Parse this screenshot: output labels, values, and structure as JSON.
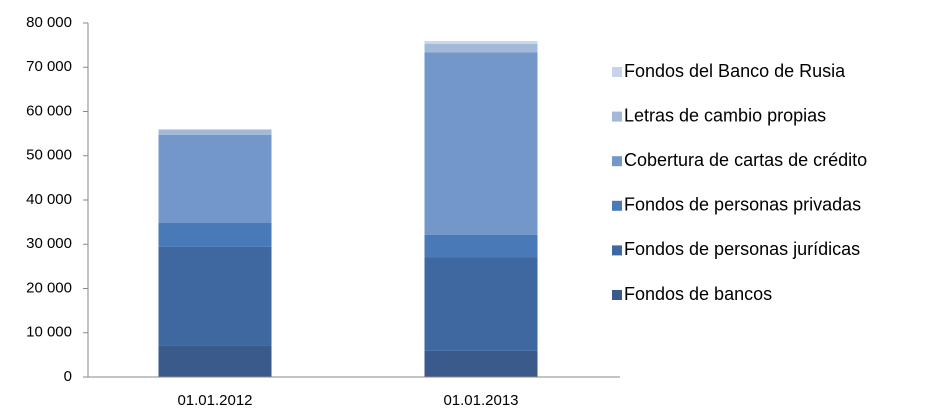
{
  "chart_data": {
    "type": "stacked_bar",
    "categories": [
      "01.01.2012",
      "01.01.2013"
    ],
    "series": [
      {
        "name": "Fondos de bancos",
        "color": "#3a5a8c",
        "values": [
          7200,
          5900
        ]
      },
      {
        "name": "Fondos de personas jurídicas",
        "color": "#3f67a0",
        "values": [
          22200,
          21200
        ]
      },
      {
        "name": "Fondos de personas privadas",
        "color": "#4a79b7",
        "values": [
          5400,
          5000
        ]
      },
      {
        "name": "Cobertura de cartas de crédito",
        "color": "#7397c9",
        "values": [
          19900,
          41300
        ]
      },
      {
        "name": "Letras de cambio propias",
        "color": "#a3b9da",
        "values": [
          1200,
          1900
        ]
      },
      {
        "name": "Fondos del Banco de Rusia",
        "color": "#c6d4e9",
        "values": [
          100,
          600
        ]
      }
    ],
    "ylim": [
      0,
      80000
    ],
    "yticks": [
      0,
      {
        "value": 10000,
        "label": "10 000"
      },
      {
        "value": 20000,
        "label": "20 000"
      },
      {
        "value": 30000,
        "label": "30 000"
      },
      {
        "value": 40000,
        "label": "40 000"
      },
      {
        "value": 50000,
        "label": "50 000"
      },
      {
        "value": 60000,
        "label": "60 000"
      },
      {
        "value": 70000,
        "label": "70 000"
      },
      {
        "value": 80000,
        "label": "80 000"
      }
    ],
    "grid": false
  }
}
